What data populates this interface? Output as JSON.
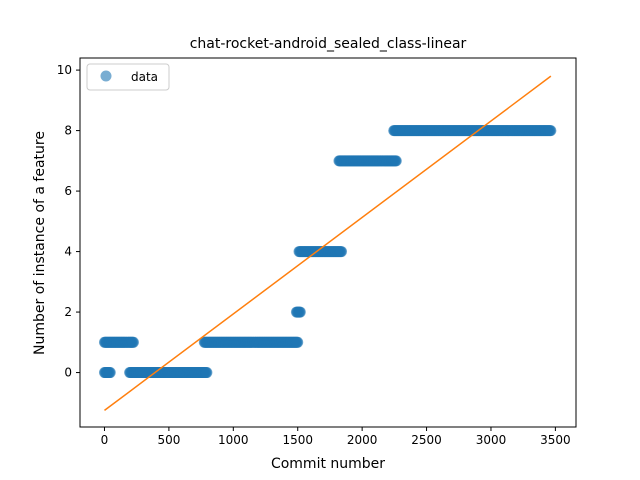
{
  "chart_data": {
    "type": "scatter",
    "title": "chat-rocket-android_sealed_class-linear",
    "xlabel": "Commit number",
    "ylabel": "Number of instance of a feature",
    "xlim": [
      -190,
      3660
    ],
    "ylim": [
      -1.8,
      10.4
    ],
    "xticks": [
      0,
      500,
      1000,
      1500,
      2000,
      2500,
      3000,
      3500
    ],
    "yticks": [
      0,
      2,
      4,
      6,
      8,
      10
    ],
    "legend": {
      "position": "upper-left",
      "entries": [
        "data"
      ]
    },
    "colors": {
      "data": "#1f77b4",
      "fit": "#ff7f0e"
    },
    "series": [
      {
        "name": "data",
        "kind": "scatter",
        "segments": [
          {
            "x_start": 0,
            "x_end": 225,
            "y": 1
          },
          {
            "x_start": 0,
            "x_end": 45,
            "y": 0
          },
          {
            "x_start": 195,
            "x_end": 795,
            "y": 0
          },
          {
            "x_start": 775,
            "x_end": 1500,
            "y": 1
          },
          {
            "x_start": 1490,
            "x_end": 1520,
            "y": 2
          },
          {
            "x_start": 1510,
            "x_end": 1840,
            "y": 4
          },
          {
            "x_start": 1820,
            "x_end": 2265,
            "y": 7
          },
          {
            "x_start": 2245,
            "x_end": 3465,
            "y": 8
          }
        ]
      },
      {
        "kind": "line",
        "x": [
          0,
          3465
        ],
        "y": [
          -1.25,
          9.8
        ]
      }
    ]
  }
}
